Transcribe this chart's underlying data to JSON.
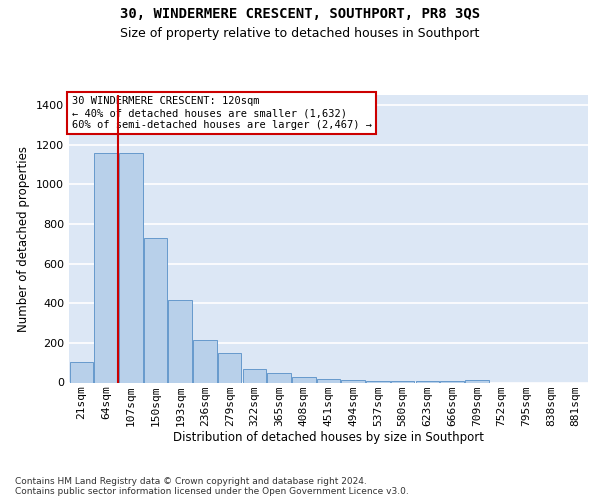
{
  "title": "30, WINDERMERE CRESCENT, SOUTHPORT, PR8 3QS",
  "subtitle": "Size of property relative to detached houses in Southport",
  "xlabel": "Distribution of detached houses by size in Southport",
  "ylabel": "Number of detached properties",
  "footer_line1": "Contains HM Land Registry data © Crown copyright and database right 2024.",
  "footer_line2": "Contains public sector information licensed under the Open Government Licence v3.0.",
  "categories": [
    "21sqm",
    "64sqm",
    "107sqm",
    "150sqm",
    "193sqm",
    "236sqm",
    "279sqm",
    "322sqm",
    "365sqm",
    "408sqm",
    "451sqm",
    "494sqm",
    "537sqm",
    "580sqm",
    "623sqm",
    "666sqm",
    "709sqm",
    "752sqm",
    "795sqm",
    "838sqm",
    "881sqm"
  ],
  "bar_heights": [
    105,
    1160,
    1155,
    730,
    415,
    215,
    148,
    70,
    48,
    30,
    18,
    15,
    8,
    8,
    8,
    8,
    15,
    0,
    0,
    0,
    0
  ],
  "bar_color": "#b8d0ea",
  "bar_edge_color": "#6699cc",
  "vline_color": "#cc0000",
  "vline_position": 1.5,
  "annotation_title": "30 WINDERMERE CRESCENT: 120sqm",
  "annotation_line1": "← 40% of detached houses are smaller (1,632)",
  "annotation_line2": "60% of semi-detached houses are larger (2,467) →",
  "annotation_box_edgecolor": "#cc0000",
  "ylim": [
    0,
    1450
  ],
  "yticks": [
    0,
    200,
    400,
    600,
    800,
    1000,
    1200,
    1400
  ],
  "bg_color": "#dce7f5",
  "grid_color": "#ffffff",
  "title_fontsize": 10,
  "subtitle_fontsize": 9,
  "ylabel_fontsize": 8.5,
  "xlabel_fontsize": 8.5,
  "tick_fontsize": 8,
  "ann_fontsize": 7.5,
  "footer_fontsize": 6.5
}
